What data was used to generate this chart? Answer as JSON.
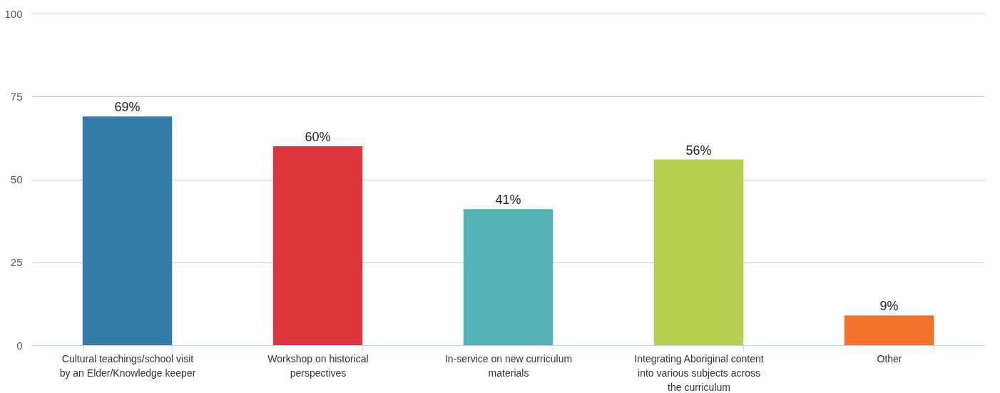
{
  "chart_data": {
    "type": "bar",
    "categories": [
      "Cultural teachings/school visit by an Elder/Knowledge keeper",
      "Workshop on historical perspectives",
      "In-service on new curriculum materials",
      "Integrating Aboriginal content into various subjects across the curriculum",
      "Other"
    ],
    "values": [
      69,
      60,
      41,
      56,
      9
    ],
    "colors": [
      "#337ea9",
      "#dd363d",
      "#55b1b5",
      "#b5cf4f",
      "#f2722b"
    ],
    "value_labels": [
      "69%",
      "60%",
      "41%",
      "56%",
      "9%"
    ],
    "ylim": [
      0,
      100
    ],
    "yticks": [
      0,
      25,
      50,
      75,
      100
    ],
    "grid": "y"
  }
}
